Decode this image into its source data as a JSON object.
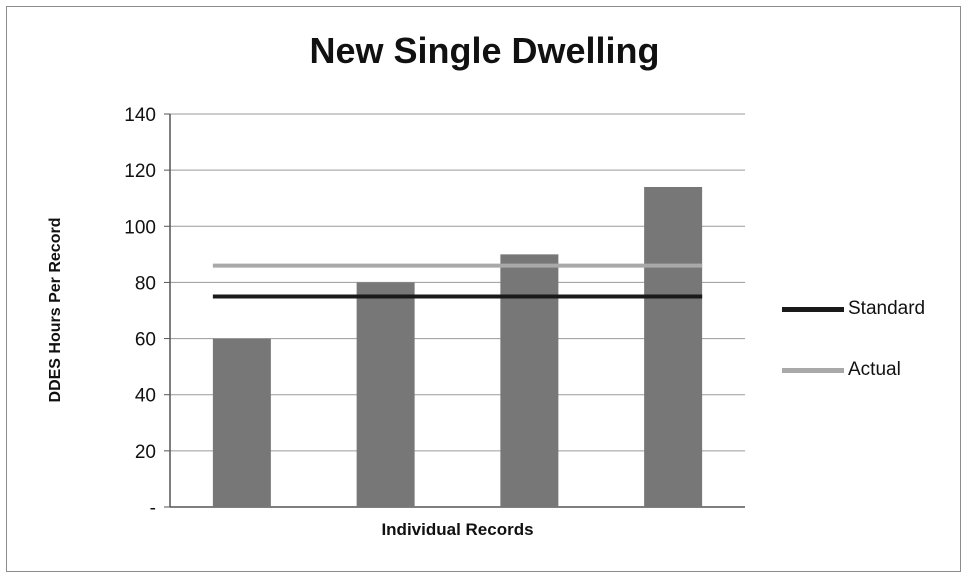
{
  "chart_data": {
    "type": "bar",
    "title": "New Single Dwelling",
    "xlabel": "Individual Records",
    "ylabel": "DDES Hours Per Record",
    "ylim": [
      0,
      140
    ],
    "yticks": [
      0,
      20,
      40,
      60,
      80,
      100,
      120,
      140
    ],
    "ytick_labels": [
      "-",
      "20",
      "40",
      "60",
      "80",
      "100",
      "120",
      "140"
    ],
    "grid": true,
    "legend_position": "right",
    "bars": {
      "values": [
        60,
        80,
        90,
        114
      ],
      "color": "#777777"
    },
    "series": [
      {
        "name": "Standard",
        "type": "line",
        "values": [
          75,
          75,
          75,
          75
        ],
        "color": "#1a1a1a"
      },
      {
        "name": "Actual",
        "type": "line",
        "values": [
          86,
          86,
          86,
          86
        ],
        "color": "#a9a9a9"
      }
    ]
  }
}
